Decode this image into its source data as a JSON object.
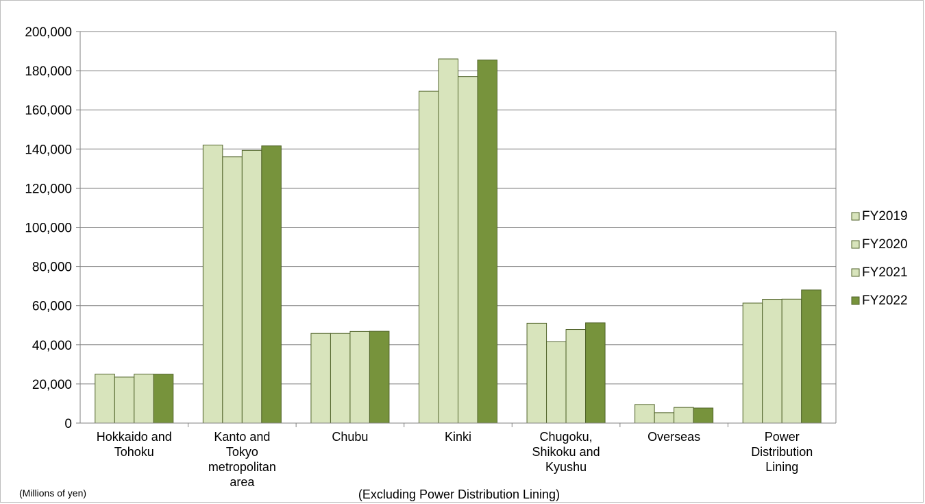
{
  "chart_data": {
    "type": "bar",
    "categories": [
      [
        "Hokkaido and",
        "Tohoku"
      ],
      [
        "Kanto and",
        "Tokyo",
        "metropolitan",
        "area"
      ],
      [
        "Chubu"
      ],
      [
        "Kinki"
      ],
      [
        "Chugoku,",
        "Shikoku and",
        "Kyushu"
      ],
      [
        "Overseas"
      ],
      [
        "Power",
        "Distribution",
        "Lining"
      ]
    ],
    "series": [
      {
        "name": "FY2019",
        "color": "#d8e4bc",
        "values": [
          25000,
          142000,
          45800,
          169500,
          51000,
          9500,
          61300
        ]
      },
      {
        "name": "FY2020",
        "color": "#d8e4bc",
        "values": [
          23500,
          136000,
          45800,
          186000,
          41500,
          5300,
          63200
        ]
      },
      {
        "name": "FY2021",
        "color": "#d8e4bc",
        "values": [
          25000,
          139300,
          46800,
          177000,
          47800,
          8000,
          63300
        ]
      },
      {
        "name": "FY2022",
        "color": "#77933c",
        "values": [
          25000,
          141600,
          46900,
          185500,
          51200,
          7700,
          68000
        ]
      }
    ],
    "ylim": [
      0,
      200000
    ],
    "ytick_step": 20000,
    "grid": true,
    "legend_position": "right",
    "unit_note": "(Millions of yen)",
    "footnote": "(Excluding Power Distribution Lining)"
  },
  "colors": {
    "gridline": "#808080",
    "axis": "#808080",
    "bar_stroke": "#4f6228"
  }
}
